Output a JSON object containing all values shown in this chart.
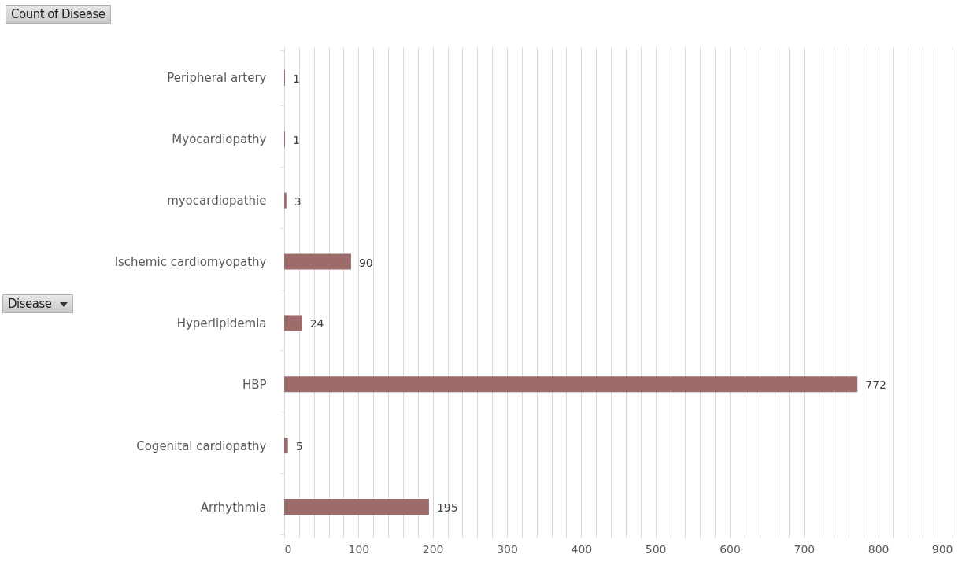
{
  "chart_data": {
    "type": "bar",
    "orientation": "horizontal",
    "title": "Count of Disease",
    "annotations": [
      "Disease"
    ],
    "categories": [
      "Peripheral artery",
      "Myocardiopathy",
      "myocardiopathie",
      "Ischemic cardiomyopathy",
      "Hyperlipidemia",
      "HBP",
      "Cogenital cardiopathy",
      "Arrhythmia"
    ],
    "values": [
      1,
      1,
      3,
      90,
      24,
      772,
      5,
      195
    ],
    "color": "#9e6b6b",
    "data_labels": true,
    "grid": true,
    "xlim": [
      0,
      900
    ],
    "xticks": [
      0,
      {
        "value": 20,
        "label": null
      },
      {
        "value": 40,
        "label": null
      },
      {
        "value": 60,
        "label": null
      },
      {
        "value": 80,
        "label": null
      },
      100,
      {
        "value": 120,
        "label": null
      },
      {
        "value": 140,
        "label": null
      },
      {
        "value": 160,
        "label": null
      },
      {
        "value": 180,
        "label": null
      },
      200,
      {
        "value": 220,
        "label": null
      },
      {
        "value": 240,
        "label": null
      },
      {
        "value": 260,
        "label": null
      },
      {
        "value": 280,
        "label": null
      },
      300,
      {
        "value": 320,
        "label": null
      },
      {
        "value": 340,
        "label": null
      },
      {
        "value": 360,
        "label": null
      },
      {
        "value": 380,
        "label": null
      },
      400,
      {
        "value": 420,
        "label": null
      },
      {
        "value": 440,
        "label": null
      },
      {
        "value": 460,
        "label": null
      },
      {
        "value": 480,
        "label": null
      },
      500,
      {
        "value": 520,
        "label": null
      },
      {
        "value": 540,
        "label": null
      },
      {
        "value": 560,
        "label": null
      },
      {
        "value": 580,
        "label": null
      },
      600,
      {
        "value": 620,
        "label": null
      },
      {
        "value": 640,
        "label": null
      },
      {
        "value": 660,
        "label": null
      },
      {
        "value": 680,
        "label": null
      },
      700,
      {
        "value": 720,
        "label": null
      },
      {
        "value": 740,
        "label": null
      },
      {
        "value": 760,
        "label": null
      },
      {
        "value": 780,
        "label": null
      },
      800,
      {
        "value": 820,
        "label": null
      },
      {
        "value": 840,
        "label": null
      },
      {
        "value": 860,
        "label": null
      },
      {
        "value": 880,
        "label": null
      },
      900
    ]
  }
}
